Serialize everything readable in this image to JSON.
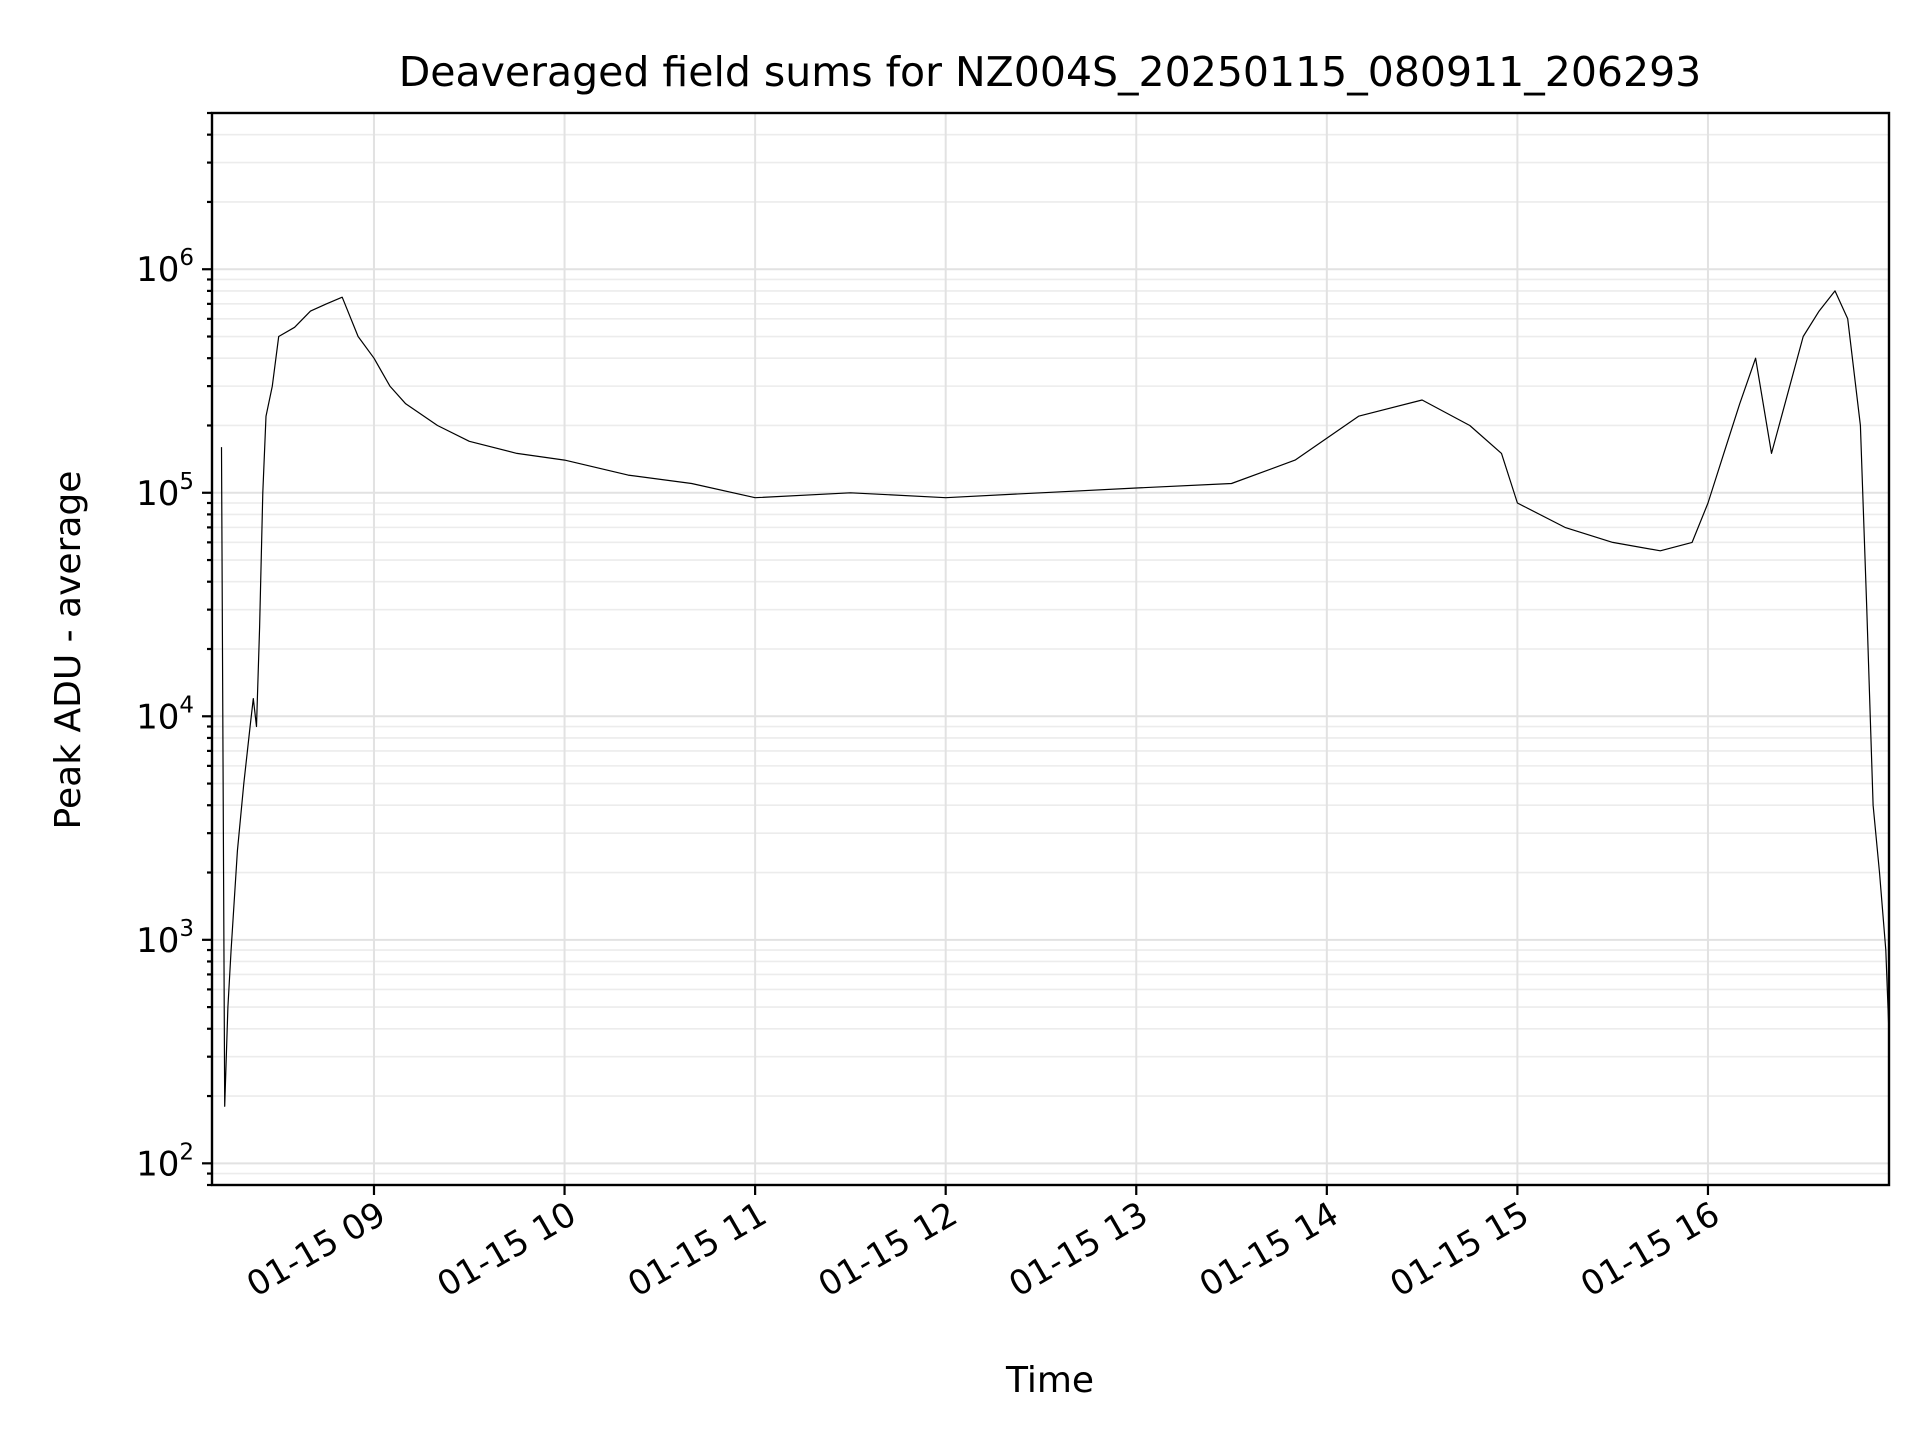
{
  "chart_data": {
    "type": "line",
    "title": "Deaveraged field sums for NZ004S_20250115_080911_206293",
    "xlabel": "Time",
    "ylabel": "Peak ADU - average",
    "yscale": "log",
    "ylim": [
      80,
      5000000
    ],
    "xlim": [
      "2025-01-15 08:09",
      "2025-01-15 16:57"
    ],
    "grid": true,
    "x_ticks": [
      "2025-01-15 09:00",
      "2025-01-15 10:00",
      "2025-01-15 11:00",
      "2025-01-15 12:00",
      "2025-01-15 13:00",
      "2025-01-15 14:00",
      "2025-01-15 15:00",
      "2025-01-15 16:00"
    ],
    "x_tick_labels": [
      "01-15 09",
      "01-15 10",
      "01-15 11",
      "01-15 12",
      "01-15 13",
      "01-15 14",
      "01-15 15",
      "01-15 16"
    ],
    "y_ticks": [
      100,
      1000,
      10000,
      100000,
      1000000
    ],
    "y_tick_labels": [
      {
        "base": "10",
        "exp": "2"
      },
      {
        "base": "10",
        "exp": "3"
      },
      {
        "base": "10",
        "exp": "4"
      },
      {
        "base": "10",
        "exp": "5"
      },
      {
        "base": "10",
        "exp": "6"
      }
    ],
    "series": [
      {
        "color": "#000000",
        "points": [
          [
            "2025-01-15 08:12",
            160000
          ],
          [
            "2025-01-15 08:13",
            180
          ],
          [
            "2025-01-15 08:14",
            500
          ],
          [
            "2025-01-15 08:15",
            900
          ],
          [
            "2025-01-15 08:17",
            2500
          ],
          [
            "2025-01-15 08:19",
            5000
          ],
          [
            "2025-01-15 08:21",
            9000
          ],
          [
            "2025-01-15 08:22",
            12000
          ],
          [
            "2025-01-15 08:23",
            9000
          ],
          [
            "2025-01-15 08:24",
            25000
          ],
          [
            "2025-01-15 08:25",
            100000
          ],
          [
            "2025-01-15 08:26",
            220000
          ],
          [
            "2025-01-15 08:28",
            300000
          ],
          [
            "2025-01-15 08:30",
            500000
          ],
          [
            "2025-01-15 08:35",
            550000
          ],
          [
            "2025-01-15 08:40",
            650000
          ],
          [
            "2025-01-15 08:45",
            700000
          ],
          [
            "2025-01-15 08:50",
            750000
          ],
          [
            "2025-01-15 08:55",
            500000
          ],
          [
            "2025-01-15 09:00",
            400000
          ],
          [
            "2025-01-15 09:05",
            300000
          ],
          [
            "2025-01-15 09:10",
            250000
          ],
          [
            "2025-01-15 09:20",
            200000
          ],
          [
            "2025-01-15 09:30",
            170000
          ],
          [
            "2025-01-15 09:45",
            150000
          ],
          [
            "2025-01-15 10:00",
            140000
          ],
          [
            "2025-01-15 10:20",
            120000
          ],
          [
            "2025-01-15 10:40",
            110000
          ],
          [
            "2025-01-15 11:00",
            95000
          ],
          [
            "2025-01-15 11:30",
            100000
          ],
          [
            "2025-01-15 12:00",
            95000
          ],
          [
            "2025-01-15 12:30",
            100000
          ],
          [
            "2025-01-15 13:00",
            105000
          ],
          [
            "2025-01-15 13:30",
            110000
          ],
          [
            "2025-01-15 13:50",
            140000
          ],
          [
            "2025-01-15 14:10",
            220000
          ],
          [
            "2025-01-15 14:30",
            260000
          ],
          [
            "2025-01-15 14:45",
            200000
          ],
          [
            "2025-01-15 14:55",
            150000
          ],
          [
            "2025-01-15 15:00",
            90000
          ],
          [
            "2025-01-15 15:15",
            70000
          ],
          [
            "2025-01-15 15:30",
            60000
          ],
          [
            "2025-01-15 15:45",
            55000
          ],
          [
            "2025-01-15 15:55",
            60000
          ],
          [
            "2025-01-15 16:00",
            90000
          ],
          [
            "2025-01-15 16:05",
            150000
          ],
          [
            "2025-01-15 16:10",
            250000
          ],
          [
            "2025-01-15 16:15",
            400000
          ],
          [
            "2025-01-15 16:20",
            150000
          ],
          [
            "2025-01-15 16:30",
            500000
          ],
          [
            "2025-01-15 16:35",
            650000
          ],
          [
            "2025-01-15 16:40",
            800000
          ],
          [
            "2025-01-15 16:44",
            600000
          ],
          [
            "2025-01-15 16:48",
            200000
          ],
          [
            "2025-01-15 16:50",
            30000
          ],
          [
            "2025-01-15 16:52",
            4000
          ],
          [
            "2025-01-15 16:54",
            2000
          ],
          [
            "2025-01-15 16:56",
            900
          ],
          [
            "2025-01-15 16:57",
            380
          ]
        ]
      }
    ]
  }
}
